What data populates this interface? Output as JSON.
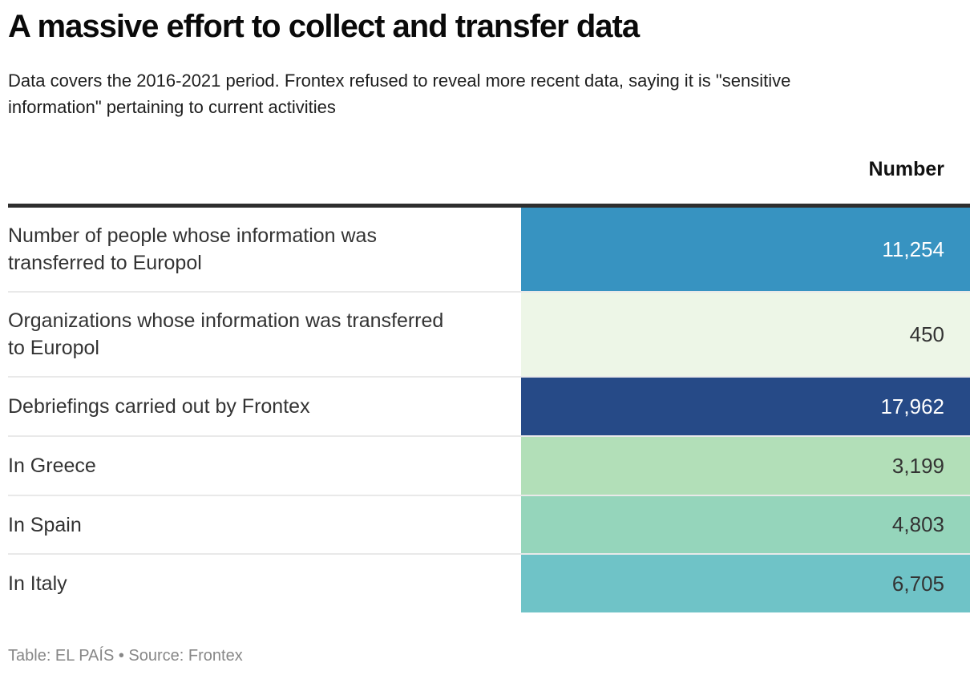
{
  "header": {
    "title": "A massive effort to collect and transfer data",
    "subtitle": "Data covers the 2016-2021 period. Frontex refused to reveal more recent data, saying it is \"sensitive information\" pertaining to current activities"
  },
  "table": {
    "value_column_header": "Number",
    "rows": [
      {
        "label": "Number of people whose information was transferred to Europol",
        "value": "11,254",
        "bg": "#3793c1",
        "text_color": "#ffffff"
      },
      {
        "label": "Organizations whose information was transferred to Europol",
        "value": "450",
        "bg": "#edf6e7",
        "text_color": "#333333"
      },
      {
        "label": "Debriefings carried out by Frontex",
        "value": "17,962",
        "bg": "#264a87",
        "text_color": "#ffffff"
      },
      {
        "label": "In Greece",
        "value": "3,199",
        "bg": "#b2dfb8",
        "text_color": "#333333"
      },
      {
        "label": "In Spain",
        "value": "4,803",
        "bg": "#95d5bb",
        "text_color": "#333333"
      },
      {
        "label": "In Italy",
        "value": "6,705",
        "bg": "#6fc3c7",
        "text_color": "#333333"
      }
    ],
    "divider_color": "#e9e9e9",
    "header_rule_color": "#2e2e2e"
  },
  "footer": {
    "credit": "Table: EL PAÍS • Source: Frontex"
  },
  "chart_data": {
    "type": "table",
    "title": "A massive effort to collect and transfer data",
    "subtitle": "Data covers the 2016-2021 period. Frontex refused to reveal more recent data, saying it is \"sensitive information\" pertaining to current activities",
    "columns": [
      "",
      "Number"
    ],
    "categories": [
      "Number of people whose information was transferred to Europol",
      "Organizations whose information was transferred to Europol",
      "Debriefings carried out by Frontex",
      "In Greece",
      "In Spain",
      "In Italy"
    ],
    "values": [
      11254,
      450,
      17962,
      3199,
      4803,
      6705
    ],
    "cell_colors": [
      "#3793c1",
      "#edf6e7",
      "#264a87",
      "#b2dfb8",
      "#95d5bb",
      "#6fc3c7"
    ],
    "source": "Table: EL PAÍS • Source: Frontex",
    "layout": "value column right-aligned heat-colored cells, labels left column on white"
  }
}
